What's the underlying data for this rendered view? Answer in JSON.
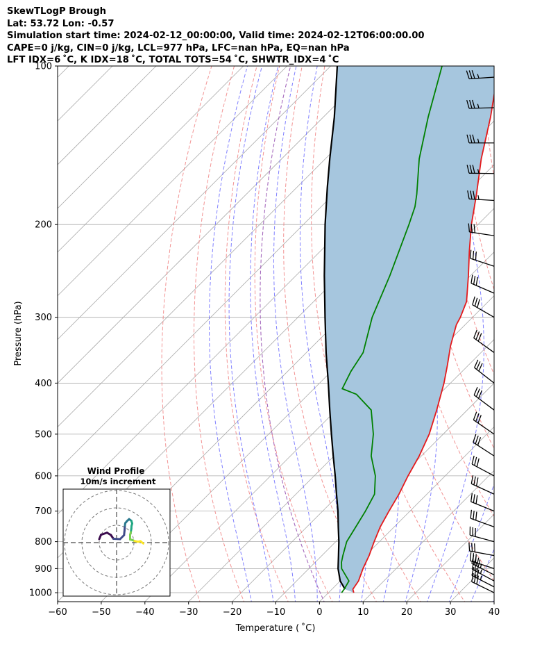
{
  "header": {
    "line1": "SkewTLogP Brough",
    "line2": "Lat: 53.72   Lon: -0.57",
    "line3": "Simulation start time: 2024-02-12_00:00:00, Valid time: 2024-02-12T06:00:00.00",
    "line4": "CAPE=0 j/kg, CIN=0 j/kg, LCL=977 hPa, LFC=nan hPa, EQ=nan hPa",
    "line5": "LFT IDX=6 ˚C, K IDX=18 ˚C, TOTAL TOTS=54 ˚C, SHWTR_IDX=4 ˚C"
  },
  "chart_data": [
    {
      "type": "line",
      "subtype": "skew-t-log-p",
      "xlabel": "Temperature ( ˚C)",
      "ylabel": "Pressure (hPa)",
      "xlim": [
        -60,
        40
      ],
      "ylim": [
        1040,
        100
      ],
      "y_scale": "log",
      "x_ticks": [
        "−60",
        "−50",
        "−40",
        "−30",
        "−20",
        "−10",
        "0",
        "10",
        "20",
        "30",
        "40"
      ],
      "y_ticks": [
        "100",
        "200",
        "300",
        "400",
        "500",
        "600",
        "700",
        "800",
        "900",
        "1000"
      ],
      "grid": true,
      "colors": {
        "temperature": "#e41a1c",
        "dewpoint": "#008000",
        "parcel": "#000000",
        "shade": "#a6c6de",
        "dry_adiabats": "#f08080",
        "moist_adiabats": "#6a6aff",
        "isotherms": "#aaaaaa",
        "mixing_ratio": "#9b59b6"
      },
      "series": [
        {
          "key": "temperature",
          "points": [
            [
              1000,
              5.8
            ],
            [
              985,
              4.8
            ],
            [
              950,
              4.2
            ],
            [
              900,
              2.4
            ],
            [
              850,
              0.8
            ],
            [
              800,
              -1.2
            ],
            [
              750,
              -3.2
            ],
            [
              700,
              -4.8
            ],
            [
              650,
              -6.4
            ],
            [
              600,
              -8.5
            ],
            [
              550,
              -10.5
            ],
            [
              500,
              -13.2
            ],
            [
              450,
              -17.0
            ],
            [
              400,
              -21.5
            ],
            [
              370,
              -24.8
            ],
            [
              340,
              -28.5
            ],
            [
              310,
              -32.0
            ],
            [
              300,
              -32.8
            ],
            [
              280,
              -35.0
            ],
            [
              250,
              -40.5
            ],
            [
              225,
              -45.8
            ],
            [
              200,
              -51.5
            ],
            [
              175,
              -57.3
            ],
            [
              150,
              -64.3
            ],
            [
              125,
              -71.7
            ],
            [
              100,
              -81.5
            ]
          ]
        },
        {
          "key": "dewpoint",
          "points": [
            [
              1000,
              3.0
            ],
            [
              985,
              2.8
            ],
            [
              950,
              2.0
            ],
            [
              900,
              -2.5
            ],
            [
              875,
              -4.0
            ],
            [
              850,
              -5.2
            ],
            [
              800,
              -7.5
            ],
            [
              750,
              -8.8
            ],
            [
              700,
              -10.2
            ],
            [
              650,
              -12.0
            ],
            [
              600,
              -16.0
            ],
            [
              550,
              -21.5
            ],
            [
              500,
              -26.0
            ],
            [
              450,
              -32.0
            ],
            [
              420,
              -39.0
            ],
            [
              410,
              -43.5
            ],
            [
              380,
              -45.5
            ],
            [
              350,
              -47.0
            ],
            [
              300,
              -53.0
            ],
            [
              250,
              -58.5
            ],
            [
              200,
              -65.8
            ],
            [
              185,
              -68.5
            ],
            [
              175,
              -71.0
            ],
            [
              150,
              -78.5
            ],
            [
              125,
              -86.0
            ],
            [
              100,
              -94.5
            ]
          ]
        },
        {
          "key": "parcel",
          "points": [
            [
              985,
              3.0
            ],
            [
              950,
              0.0
            ],
            [
              900,
              -3.3
            ],
            [
              850,
              -6.2
            ],
            [
              800,
              -9.3
            ],
            [
              750,
              -12.8
            ],
            [
              700,
              -16.5
            ],
            [
              650,
              -20.7
            ],
            [
              600,
              -25.2
            ],
            [
              550,
              -30.2
            ],
            [
              500,
              -35.6
            ],
            [
              450,
              -41.5
            ],
            [
              400,
              -48.0
            ],
            [
              350,
              -55.5
            ],
            [
              300,
              -63.8
            ],
            [
              250,
              -73.5
            ],
            [
              200,
              -85.0
            ],
            [
              170,
              -93.0
            ],
            [
              150,
              -99.0
            ],
            [
              125,
              -107.5
            ],
            [
              100,
              -118.5
            ]
          ]
        }
      ],
      "wind_barbs": [
        {
          "p": 1000,
          "u": -14.9,
          "v": 7.3
        },
        {
          "p": 975,
          "u": -15.4,
          "v": 7.9
        },
        {
          "p": 950,
          "u": -15.9,
          "v": 8.5
        },
        {
          "p": 925,
          "u": -16.4,
          "v": 8.3
        },
        {
          "p": 900,
          "u": -16.3,
          "v": 5.3
        },
        {
          "p": 850,
          "u": -16.3,
          "v": 3.0
        },
        {
          "p": 800,
          "u": -15.6,
          "v": 4.2
        },
        {
          "p": 750,
          "u": -15.5,
          "v": 5.6
        },
        {
          "p": 700,
          "u": -15.3,
          "v": 6.2
        },
        {
          "p": 650,
          "u": -14.8,
          "v": 6.8
        },
        {
          "p": 600,
          "u": -14.7,
          "v": 7.8
        },
        {
          "p": 550,
          "u": -13.6,
          "v": 8.8
        },
        {
          "p": 500,
          "u": -12.6,
          "v": 8.7
        },
        {
          "p": 450,
          "u": -12.0,
          "v": 9.0
        },
        {
          "p": 400,
          "u": -11.6,
          "v": 9.1
        },
        {
          "p": 350,
          "u": -12.0,
          "v": 8.6
        },
        {
          "p": 300,
          "u": -13.3,
          "v": 7.7
        },
        {
          "p": 270,
          "u": -14.4,
          "v": 6.2
        },
        {
          "p": 240,
          "u": -15.2,
          "v": 5.0
        },
        {
          "p": 210,
          "u": -16.5,
          "v": 2.5
        },
        {
          "p": 180,
          "u": -17.0,
          "v": 1.0
        },
        {
          "p": 160,
          "u": -17.5,
          "v": 0.2
        },
        {
          "p": 140,
          "u": -17.8,
          "v": 0.0
        },
        {
          "p": 120,
          "u": -17.8,
          "v": -0.5
        },
        {
          "p": 105,
          "u": -17.8,
          "v": -1.2
        }
      ]
    },
    {
      "type": "line",
      "subtype": "hodograph",
      "title": "Wind Profile",
      "subtitle": "10m/s increment",
      "ring_step": 10,
      "rings": 3,
      "colormap": [
        "#3a0a4d",
        "#3e4a89",
        "#2a788e",
        "#22a884",
        "#7ad151",
        "#fde725"
      ],
      "points": [
        [
          -10.0,
          2.0
        ],
        [
          -9.0,
          4.5
        ],
        [
          -5.5,
          5.7
        ],
        [
          -3.3,
          4.4
        ],
        [
          -1.8,
          2.2
        ],
        [
          2.0,
          2.0
        ],
        [
          4.3,
          4.3
        ],
        [
          4.6,
          7.0
        ],
        [
          4.8,
          9.8
        ],
        [
          5.0,
          11.2
        ],
        [
          6.0,
          12.4
        ],
        [
          7.2,
          13.5
        ],
        [
          8.5,
          12.6
        ],
        [
          9.0,
          11.0
        ],
        [
          8.6,
          9.5
        ],
        [
          8.5,
          8.0
        ],
        [
          8.2,
          6.0
        ],
        [
          7.8,
          4.5
        ],
        [
          7.8,
          1.8
        ],
        [
          9.3,
          1.4
        ],
        [
          10.4,
          0.9
        ],
        [
          12.4,
          0.5
        ],
        [
          13.8,
          0.8
        ],
        [
          15.4,
          -0.5
        ]
      ]
    }
  ]
}
